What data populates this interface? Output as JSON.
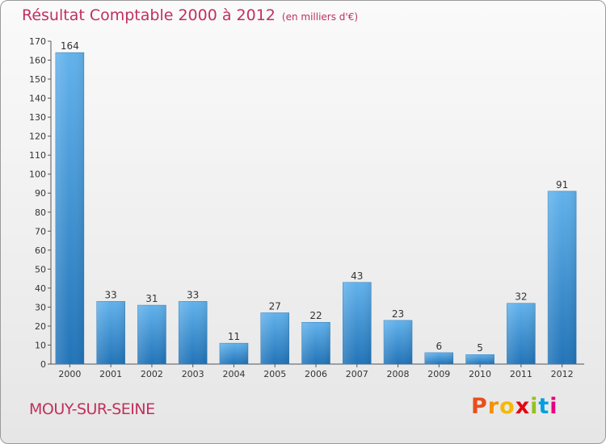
{
  "chart_data": {
    "type": "bar",
    "title": "Résultat Comptable 2000 à 2012",
    "subtitle": "(en milliers d'€)",
    "categories": [
      "2000",
      "2001",
      "2002",
      "2003",
      "2004",
      "2005",
      "2006",
      "2007",
      "2008",
      "2009",
      "2010",
      "2011",
      "2012"
    ],
    "values": [
      164,
      33,
      31,
      33,
      11,
      27,
      22,
      43,
      23,
      6,
      5,
      32,
      91
    ],
    "xlabel": "",
    "ylabel": "",
    "ylim": [
      0,
      170
    ],
    "yticks": [
      0,
      10,
      20,
      30,
      40,
      50,
      60,
      70,
      80,
      90,
      100,
      110,
      120,
      130,
      140,
      150,
      160,
      170
    ],
    "grid": false,
    "bar_color": "#4a9fdc"
  },
  "footer": {
    "town": "MOUY-SUR-SEINE",
    "brand_letters": [
      "P",
      "r",
      "o",
      "x",
      "i",
      "t",
      "i"
    ],
    "brand_colors": [
      "#e94e1b",
      "#f39200",
      "#f6b800",
      "#e30613",
      "#95c11f",
      "#009fe3",
      "#e5007e"
    ]
  },
  "colors": {
    "accent": "#c0305d"
  }
}
